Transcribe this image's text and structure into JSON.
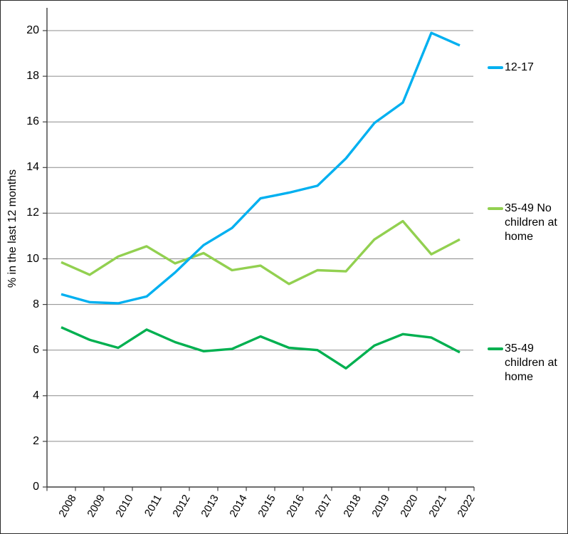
{
  "chart_data": {
    "type": "line",
    "title": "",
    "xlabel": "",
    "ylabel": "% in the last 12 months",
    "x": [
      "2008",
      "2009",
      "2010",
      "2011",
      "2012",
      "2013",
      "2014",
      "2015",
      "2016",
      "2017",
      "2018",
      "2019",
      "2020",
      "2021",
      "2022"
    ],
    "ylim": [
      0,
      21
    ],
    "yticks": [
      0,
      2,
      4,
      6,
      8,
      10,
      12,
      14,
      16,
      18,
      20
    ],
    "grid": "horizontal-only",
    "legend_position": "right-outside",
    "series": [
      {
        "name": "35-49 No children at home",
        "legend_lines": [
          "35-49 No",
          "children at",
          "home"
        ],
        "color": "#92D050",
        "values": [
          9.85,
          9.3,
          10.1,
          10.55,
          9.8,
          10.25,
          9.5,
          9.7,
          8.9,
          9.5,
          9.45,
          10.85,
          11.65,
          10.2,
          10.85
        ]
      },
      {
        "name": "35-49 children at home",
        "legend_lines": [
          "35-49",
          "children at",
          "home"
        ],
        "color": "#00B050",
        "values": [
          7.0,
          6.45,
          6.1,
          6.9,
          6.35,
          5.95,
          6.05,
          6.6,
          6.1,
          6.0,
          5.2,
          6.2,
          6.7,
          6.55,
          5.9
        ]
      },
      {
        "name": "12-17",
        "legend_lines": [
          "12-17"
        ],
        "color": "#00B0F0",
        "values": [
          8.45,
          8.1,
          8.05,
          8.35,
          9.4,
          10.6,
          11.35,
          12.65,
          12.9,
          13.2,
          14.4,
          15.95,
          16.85,
          19.9,
          19.35
        ]
      }
    ]
  },
  "colors": {
    "background": "#FFFFFF",
    "gridline": "#8C8C8C",
    "axis": "#3F3F3F",
    "text": "#000000",
    "border": "#2B2B2B"
  }
}
